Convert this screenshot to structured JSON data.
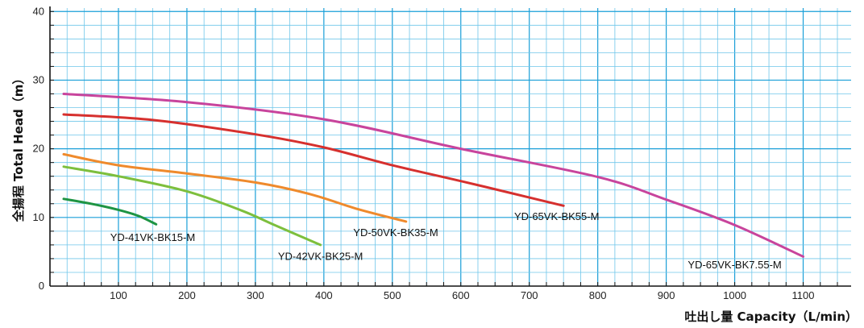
{
  "chart_data": {
    "type": "line",
    "xlabel": "吐出し量 Capacity（L/min）",
    "ylabel": "全揚程 Total Head（m）",
    "xlim": [
      0,
      1170
    ],
    "ylim": [
      0,
      40.5
    ],
    "x_ticks": [
      "100",
      "200",
      "300",
      "400",
      "500",
      "600",
      "700",
      "800",
      "900",
      "1000",
      "1100"
    ],
    "y_ticks": [
      "0",
      "10",
      "20",
      "30",
      "40"
    ],
    "grid": true,
    "series": [
      {
        "name": "YD-41VK-BK15-M",
        "color": "#1e9443",
        "points": [
          [
            20,
            12.7
          ],
          [
            60,
            12.0
          ],
          [
            100,
            11.1
          ],
          [
            130,
            10.2
          ],
          [
            155,
            9.0
          ]
        ]
      },
      {
        "name": "YD-42VK-BK25-M",
        "color": "#7dbf3d",
        "points": [
          [
            20,
            17.4
          ],
          [
            100,
            16.0
          ],
          [
            200,
            13.8
          ],
          [
            280,
            11.0
          ],
          [
            330,
            8.8
          ],
          [
            395,
            6.0
          ]
        ]
      },
      {
        "name": "YD-50VK-BK35-M",
        "color": "#ef8a2c",
        "points": [
          [
            20,
            19.2
          ],
          [
            100,
            17.6
          ],
          [
            200,
            16.4
          ],
          [
            300,
            15.1
          ],
          [
            380,
            13.4
          ],
          [
            450,
            11.2
          ],
          [
            520,
            9.4
          ]
        ]
      },
      {
        "name": "YD-65VK-BK55-M",
        "color": "#d6302e",
        "points": [
          [
            20,
            25.0
          ],
          [
            150,
            24.2
          ],
          [
            300,
            22.1
          ],
          [
            400,
            20.2
          ],
          [
            500,
            17.6
          ],
          [
            600,
            15.3
          ],
          [
            700,
            12.9
          ],
          [
            750,
            11.7
          ]
        ]
      },
      {
        "name": "YD-65VK-BK7.55-M",
        "color": "#c8449c",
        "points": [
          [
            20,
            28.0
          ],
          [
            200,
            26.8
          ],
          [
            400,
            24.3
          ],
          [
            600,
            20.0
          ],
          [
            800,
            15.9
          ],
          [
            900,
            12.6
          ],
          [
            1000,
            8.9
          ],
          [
            1100,
            4.3
          ]
        ]
      }
    ],
    "labels": [
      {
        "text": "YD-41VK-BK15-M",
        "series": 0,
        "at": [
          150,
          6.6
        ]
      },
      {
        "text": "YD-42VK-BK25-M",
        "series": 1,
        "at": [
          395,
          3.8
        ]
      },
      {
        "text": "YD-50VK-BK35-M",
        "series": 2,
        "at": [
          505,
          7.3
        ]
      },
      {
        "text": "YD-65VK-BK55-M",
        "series": 3,
        "at": [
          740,
          9.6
        ]
      },
      {
        "text": "YD-65VK-BK7.55-M",
        "series": 4,
        "at": [
          1000,
          2.6
        ]
      }
    ]
  }
}
